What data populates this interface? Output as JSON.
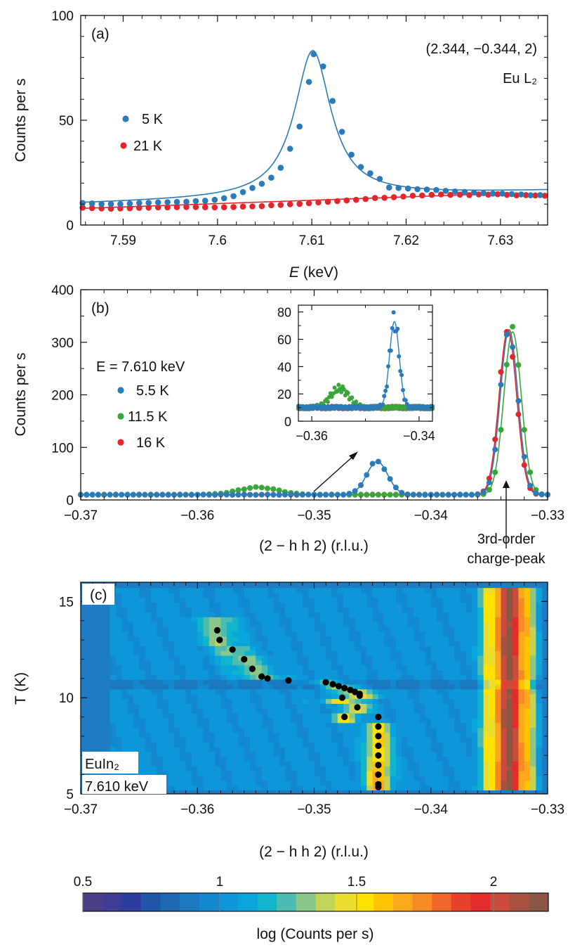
{
  "chart_data": [
    {
      "panel": "(a)",
      "type": "scatter",
      "xlabel_italic": "E",
      "xlabel_rest": " (keV)",
      "ylabel": "Counts per s",
      "xlim": [
        7.5855,
        7.635
      ],
      "ylim": [
        0,
        100
      ],
      "x_ticks": [
        7.59,
        7.6,
        7.61,
        7.62,
        7.63
      ],
      "x_tick_labels": [
        "7.59",
        "7.6",
        "7.61",
        "7.62",
        "7.63"
      ],
      "y_ticks": [
        0,
        50,
        100
      ],
      "y_tick_labels": [
        "0",
        "50",
        "100"
      ],
      "annotations": [
        "(2.344, −0.344, 2)",
        "Eu L₂"
      ],
      "series": [
        {
          "name": "5 K",
          "color": "#2b7bb9",
          "points": [
            [
              7.5857,
              10.5
            ],
            [
              7.5867,
              10.3
            ],
            [
              7.5877,
              10.0
            ],
            [
              7.5887,
              10.0
            ],
            [
              7.5897,
              10.0
            ],
            [
              7.5907,
              10.2
            ],
            [
              7.5917,
              10.5
            ],
            [
              7.5927,
              10.6
            ],
            [
              7.5937,
              10.8
            ],
            [
              7.5947,
              10.9
            ],
            [
              7.5957,
              11.0
            ],
            [
              7.5967,
              11.1
            ],
            [
              7.5977,
              11.4
            ],
            [
              7.5987,
              11.6
            ],
            [
              7.5997,
              12.0
            ],
            [
              7.6007,
              12.8
            ],
            [
              7.6017,
              13.8
            ],
            [
              7.6027,
              15.7
            ],
            [
              7.6037,
              17.7
            ],
            [
              7.6047,
              19.7
            ],
            [
              7.6057,
              22.6
            ],
            [
              7.6067,
              27.3
            ],
            [
              7.6077,
              36.4
            ],
            [
              7.6087,
              47.0
            ],
            [
              7.6097,
              68.3
            ],
            [
              7.6102,
              81.5
            ],
            [
              7.6112,
              75.7
            ],
            [
              7.6122,
              59.2
            ],
            [
              7.6132,
              44.5
            ],
            [
              7.6142,
              33.6
            ],
            [
              7.6152,
              27.7
            ],
            [
              7.6162,
              24.7
            ],
            [
              7.6172,
              22.0
            ],
            [
              7.6182,
              17.9
            ],
            [
              7.6192,
              17.7
            ],
            [
              7.6202,
              17.4
            ],
            [
              7.6212,
              17.1
            ],
            [
              7.6222,
              16.9
            ],
            [
              7.6232,
              16.7
            ],
            [
              7.6242,
              16.3
            ],
            [
              7.6252,
              16.0
            ],
            [
              7.6262,
              15.8
            ],
            [
              7.6272,
              15.5
            ],
            [
              7.6282,
              15.2
            ],
            [
              7.6292,
              15.0
            ],
            [
              7.6302,
              15.0
            ],
            [
              7.6312,
              14.8
            ],
            [
              7.6322,
              14.6
            ],
            [
              7.6332,
              14.2
            ],
            [
              7.6342,
              14.3
            ]
          ]
        },
        {
          "name": "21 K",
          "color": "#e3262b",
          "points": [
            [
              7.5857,
              8.3
            ],
            [
              7.5867,
              8.1
            ],
            [
              7.5877,
              7.9
            ],
            [
              7.5887,
              7.8
            ],
            [
              7.5897,
              7.9
            ],
            [
              7.5907,
              8.0
            ],
            [
              7.5917,
              8.2
            ],
            [
              7.5927,
              8.3
            ],
            [
              7.5937,
              8.4
            ],
            [
              7.5947,
              8.4
            ],
            [
              7.5957,
              8.5
            ],
            [
              7.5967,
              8.6
            ],
            [
              7.5977,
              8.6
            ],
            [
              7.5987,
              8.5
            ],
            [
              7.5997,
              8.4
            ],
            [
              7.6007,
              8.5
            ],
            [
              7.6017,
              8.6
            ],
            [
              7.6027,
              8.8
            ],
            [
              7.6037,
              8.9
            ],
            [
              7.6047,
              9.0
            ],
            [
              7.6057,
              9.4
            ],
            [
              7.6067,
              9.6
            ],
            [
              7.6077,
              9.9
            ],
            [
              7.6087,
              10.1
            ],
            [
              7.6097,
              10.4
            ],
            [
              7.6107,
              10.8
            ],
            [
              7.6117,
              11.1
            ],
            [
              7.6127,
              11.4
            ],
            [
              7.6137,
              11.7
            ],
            [
              7.6147,
              12.0
            ],
            [
              7.6157,
              12.4
            ],
            [
              7.6167,
              12.9
            ],
            [
              7.6177,
              13.0
            ],
            [
              7.6187,
              13.3
            ],
            [
              7.6197,
              13.6
            ],
            [
              7.6207,
              14.0
            ],
            [
              7.6217,
              14.1
            ],
            [
              7.6227,
              14.4
            ],
            [
              7.6237,
              14.6
            ],
            [
              7.6247,
              14.4
            ],
            [
              7.6257,
              14.5
            ],
            [
              7.6267,
              14.3
            ],
            [
              7.6277,
              14.6
            ],
            [
              7.6287,
              14.5
            ],
            [
              7.6297,
              14.7
            ],
            [
              7.6307,
              14.4
            ],
            [
              7.6317,
              14.2
            ],
            [
              7.6327,
              14.3
            ],
            [
              7.6337,
              14.1
            ],
            [
              7.6347,
              14.0
            ]
          ]
        }
      ],
      "fits": [
        {
          "series": "5 K",
          "baseline": 10.2,
          "slope": 124.0,
          "amplitude": 70.0,
          "center": 7.6101,
          "hwhm": 0.00235
        },
        {
          "series": "21 K",
          "baseline": 7.9,
          "slope": 160.0,
          "cap": 14.6
        }
      ]
    },
    {
      "panel": "(b)",
      "type": "scatter",
      "xlabel": "(2 − h h 2) (r.l.u.)",
      "ylabel": "Counts per s",
      "xlim": [
        -0.37,
        -0.33
      ],
      "ylim": [
        0,
        400
      ],
      "x_ticks": [
        -0.37,
        -0.36,
        -0.35,
        -0.34,
        -0.33
      ],
      "x_tick_labels": [
        "−0.37",
        "−0.36",
        "−0.35",
        "−0.34",
        "−0.33"
      ],
      "y_ticks": [
        0,
        100,
        200,
        300,
        400
      ],
      "y_tick_labels": [
        "0",
        "100",
        "200",
        "300",
        "400"
      ],
      "legend_title": "E = 7.610 keV",
      "annotations": [
        "3rd-order",
        "charge-peak"
      ],
      "series": [
        {
          "name": "5.5 K",
          "color": "#2b7bb9",
          "base": 10,
          "peaks": [
            {
              "center": -0.3446,
              "amplitude": 63,
              "sigma": 0.0009
            },
            {
              "center": -0.3333,
              "amplitude": 314,
              "sigma": 0.00075
            }
          ]
        },
        {
          "name": "11.5 K",
          "color": "#3aa63a",
          "base": 10,
          "peaks": [
            {
              "center": -0.3548,
              "amplitude": 14,
              "sigma": 0.0017
            },
            {
              "center": -0.333,
              "amplitude": 310,
              "sigma": 0.00075
            }
          ]
        },
        {
          "name": "16 K",
          "color": "#e3262b",
          "base": 10,
          "peaks": [
            {
              "center": -0.3334,
              "amplitude": 312,
              "sigma": 0.00075
            }
          ]
        }
      ],
      "inset": {
        "xlim": [
          -0.3625,
          -0.3375
        ],
        "ylim": [
          0,
          85
        ],
        "x_ticks": [
          -0.36,
          -0.34
        ],
        "x_tick_labels": [
          "−0.36",
          "−0.34"
        ],
        "y_ticks": [
          0,
          20,
          40,
          60,
          80
        ],
        "y_tick_labels": [
          "0",
          "20",
          "40",
          "60",
          "80"
        ]
      }
    },
    {
      "panel": "(c)",
      "type": "heatmap",
      "xlabel": "(2 − h h 2) (r.l.u.)",
      "ylabel": "T (K)",
      "xlim": [
        -0.37,
        -0.33
      ],
      "ylim": [
        5,
        16
      ],
      "heat_xlim": [
        -0.3675,
        -0.3305
      ],
      "heat_ylim": [
        5.2,
        15.6
      ],
      "x_ticks": [
        -0.37,
        -0.36,
        -0.35,
        -0.34,
        -0.33
      ],
      "x_tick_labels": [
        "−0.37",
        "−0.36",
        "−0.35",
        "−0.34",
        "−0.33"
      ],
      "y_ticks": [
        5,
        10,
        15
      ],
      "y_tick_labels": [
        "5",
        "10",
        "15"
      ],
      "annotations": [
        "EuIn₂",
        "7.610 keV"
      ],
      "colorbar": {
        "label": "log (Counts per s)",
        "range": [
          0.5,
          2.2
        ],
        "ticks": [
          0.5,
          1,
          1.5,
          2
        ],
        "tick_labels": [
          "0.5",
          "1",
          "1.5",
          "2"
        ],
        "colors": [
          "#4a3f86",
          "#3d3d95",
          "#2d3e9f",
          "#1f56a8",
          "#1d68b1",
          "#1a78bf",
          "#1288ce",
          "#0e97d8",
          "#0aa6db",
          "#10b4cc",
          "#4cbcb0",
          "#8ac78a",
          "#c2d35a",
          "#ecdc2c",
          "#ffe200",
          "#ffc400",
          "#fba81c",
          "#f68a25",
          "#f0652a",
          "#e8412c",
          "#e52a2c",
          "#c94c3c",
          "#a7523f",
          "#8c5444"
        ]
      },
      "peak_positions": [
        [
          -0.3583,
          13.5
        ],
        [
          -0.3581,
          13.0
        ],
        [
          -0.357,
          12.5
        ],
        [
          -0.356,
          12.0
        ],
        [
          -0.3553,
          11.5
        ],
        [
          -0.3545,
          11.1
        ],
        [
          -0.354,
          11.0
        ],
        [
          -0.3522,
          10.9
        ],
        [
          -0.349,
          10.8
        ],
        [
          -0.3484,
          10.7
        ],
        [
          -0.3479,
          10.6
        ],
        [
          -0.3474,
          10.5
        ],
        [
          -0.3469,
          10.4
        ],
        [
          -0.3465,
          10.3
        ],
        [
          -0.3461,
          10.2
        ],
        [
          -0.3461,
          10.1
        ],
        [
          -0.3476,
          10.0
        ],
        [
          -0.3463,
          9.5
        ],
        [
          -0.3474,
          9.0
        ],
        [
          -0.3445,
          9.0
        ],
        [
          -0.3445,
          8.5
        ],
        [
          -0.3445,
          8.0
        ],
        [
          -0.3445,
          7.5
        ],
        [
          -0.3445,
          7.0
        ],
        [
          -0.3445,
          6.5
        ],
        [
          -0.3445,
          6.0
        ],
        [
          -0.3445,
          5.5
        ],
        [
          -0.3445,
          5.35
        ]
      ]
    }
  ]
}
